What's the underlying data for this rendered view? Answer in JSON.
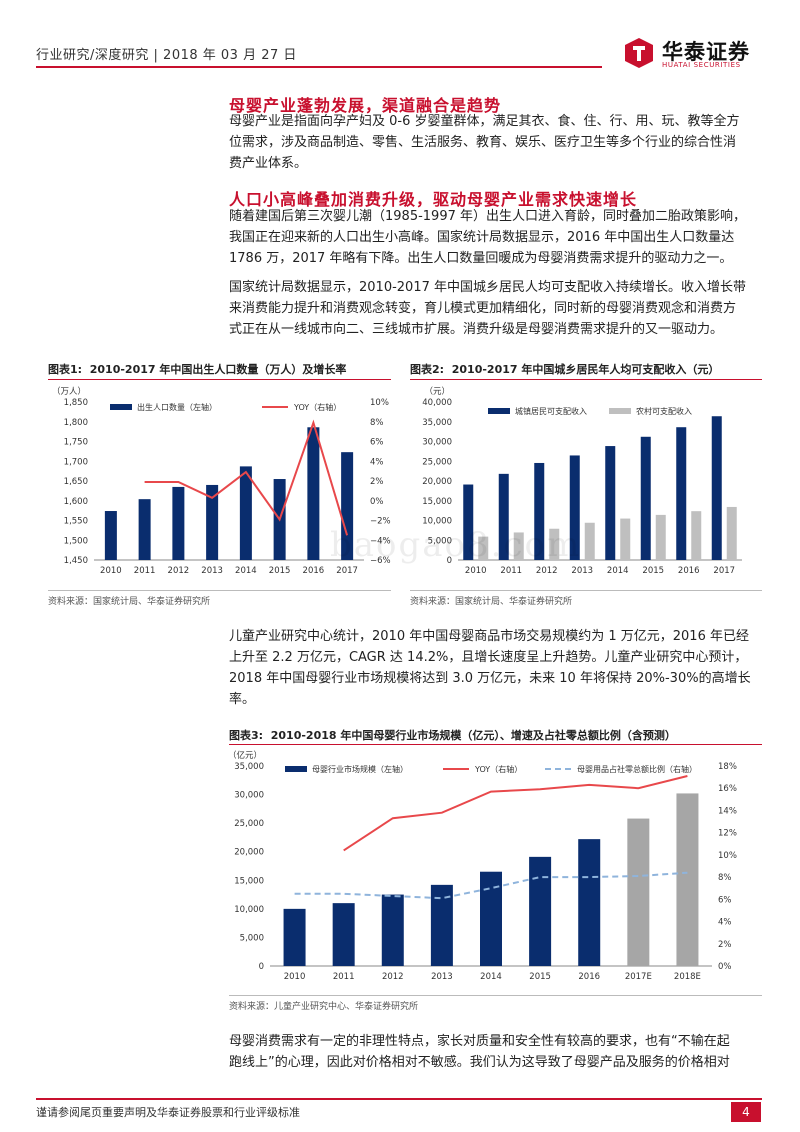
{
  "header": {
    "category": "行业研究/深度研究",
    "date": "2018 年 03 月 27 日",
    "logo_cn": "华泰证券",
    "logo_en": "HUATAI SECURITIES"
  },
  "section1": {
    "title": "母婴产业蓬勃发展，渠道融合是趋势",
    "lines": [
      "母婴产业是指面向孕产妇及 0-6 岁婴童群体，满足其衣、食、住、行、用、玩、教等全方",
      "位需求，涉及商品制造、零售、生活服务、教育、娱乐、医疗卫生等多个行业的综合性消",
      "费产业体系。"
    ]
  },
  "section2": {
    "title": "人口小高峰叠加消费升级，驱动母婴产业需求快速增长",
    "para1": [
      "随着建国后第三次婴儿潮（1985-1997 年）出生人口进入育龄，同时叠加二胎政策影响，",
      "我国正在迎来新的人口出生小高峰。国家统计局数据显示，2016 年中国出生人口数量达",
      "1786 万，2017 年略有下降。出生人口数量回暖成为母婴消费需求提升的驱动力之一。"
    ],
    "para2": [
      "国家统计局数据显示，2010-2017 年中国城乡居民人均可支配收入持续增长。收入增长带",
      "来消费能力提升和消费观念转变，育儿模式更加精细化，同时新的母婴消费观念和消费方",
      "式正在从一线城市向二、三线城市扩展。消费升级是母婴消费需求提升的又一驱动力。"
    ]
  },
  "para3": [
    "儿童产业研究中心统计，2010 年中国母婴商品市场交易规模约为 1 万亿元，2016 年已经",
    "上升至 2.2 万亿元，CAGR 达 14.2%，且增长速度呈上升趋势。儿童产业研究中心预计，",
    "2018 年中国母婴行业市场规模将达到 3.0 万亿元，未来 10 年将保持 20%-30%的高增长",
    "率。"
  ],
  "para4": [
    "母婴消费需求有一定的非理性特点，家长对质量和安全性有较高的要求，也有“不输在起",
    "跑线上”的心理，因此对价格相对不敏感。我们认为这导致了母婴产品及服务的价格相对"
  ],
  "watermark": "baogao8.com",
  "chart_data": [
    {
      "type": "bar",
      "label": "图表1:",
      "title": "2010-2017 年中国出生人口数量（万人）及增长率",
      "unit_left": "（万人）",
      "categories": [
        "2010",
        "2011",
        "2012",
        "2013",
        "2014",
        "2015",
        "2016",
        "2017"
      ],
      "series": [
        {
          "name": "出生人口数量（左轴）",
          "type": "bar",
          "axis": "left",
          "color": "#0a2d6e",
          "values": [
            1574,
            1604,
            1635,
            1640,
            1687,
            1655,
            1786,
            1723
          ]
        },
        {
          "name": "YOY（右轴）",
          "type": "line",
          "axis": "right",
          "color": "#e8484b",
          "values": [
            null,
            1.9,
            1.9,
            0.3,
            2.9,
            -1.9,
            7.9,
            -3.5
          ]
        }
      ],
      "ylim_left": [
        1450,
        1850
      ],
      "yticks_left": [
        "1,450",
        "1,500",
        "1,550",
        "1,600",
        "1,650",
        "1,700",
        "1,750",
        "1,800",
        "1,850"
      ],
      "ylim_right": [
        -6,
        10
      ],
      "yticks_right": [
        "−6%",
        "−4%",
        "−2%",
        "0%",
        "2%",
        "4%",
        "6%",
        "8%",
        "10%"
      ],
      "source": "资料来源：国家统计局、华泰证券研究所"
    },
    {
      "type": "bar",
      "label": "图表2:",
      "title": "2010-2017 年中国城乡居民年人均可支配收入（元）",
      "unit_left": "（元）",
      "categories": [
        "2010",
        "2011",
        "2012",
        "2013",
        "2014",
        "2015",
        "2016",
        "2017"
      ],
      "series": [
        {
          "name": "城镇居民可支配收入",
          "color": "#0a2d6e",
          "values": [
            19109,
            21810,
            24565,
            26467,
            28844,
            31195,
            33616,
            36396
          ]
        },
        {
          "name": "农村可支配收入",
          "color": "#bfbfbf",
          "values": [
            5919,
            6977,
            7917,
            9430,
            10489,
            11422,
            12363,
            13432
          ]
        }
      ],
      "ylim_left": [
        0,
        40000
      ],
      "yticks_left": [
        "0",
        "5,000",
        "10,000",
        "15,000",
        "20,000",
        "25,000",
        "30,000",
        "35,000",
        "40,000"
      ],
      "source": "资料来源：国家统计局、华泰证券研究所"
    },
    {
      "type": "bar",
      "label": "图表3:",
      "title": "2010-2018 年中国母婴行业市场规模（亿元）、增速及占社零总额比例（含预测）",
      "unit_left": "（亿元）",
      "categories": [
        "2010",
        "2011",
        "2012",
        "2013",
        "2014",
        "2015",
        "2016",
        "2017E",
        "2018E"
      ],
      "series": [
        {
          "name": "母婴行业市场规模（左轴）",
          "type": "bar",
          "axis": "left",
          "color": "#0a2d6e",
          "forecast_color": "#a6a6a6",
          "values": [
            10000,
            11000,
            12500,
            14200,
            16500,
            19100,
            22200,
            25800,
            30200
          ]
        },
        {
          "name": "YOY（右轴）",
          "type": "line",
          "axis": "right",
          "color": "#e8484b",
          "values": [
            null,
            10.4,
            13.3,
            13.8,
            15.7,
            15.9,
            16.3,
            16.0,
            17.1
          ]
        },
        {
          "name": "母婴用品占社零总额比例（右轴）",
          "type": "line-dashed",
          "axis": "right",
          "color": "#8fb4dc",
          "values": [
            6.5,
            6.5,
            6.3,
            6.1,
            7.0,
            8.0,
            8.0,
            8.1,
            8.4
          ]
        }
      ],
      "ylim_left": [
        0,
        35000
      ],
      "yticks_left": [
        "0",
        "5,000",
        "10,000",
        "15,000",
        "20,000",
        "25,000",
        "30,000",
        "35,000"
      ],
      "ylim_right": [
        0,
        18
      ],
      "yticks_right": [
        "0%",
        "2%",
        "4%",
        "6%",
        "8%",
        "10%",
        "12%",
        "14%",
        "16%",
        "18%"
      ],
      "source": "资料来源：儿童产业研究中心、华泰证券研究所"
    }
  ],
  "footer": {
    "note": "谨请参阅尾页重要声明及华泰证券股票和行业评级标准",
    "page": "4"
  }
}
